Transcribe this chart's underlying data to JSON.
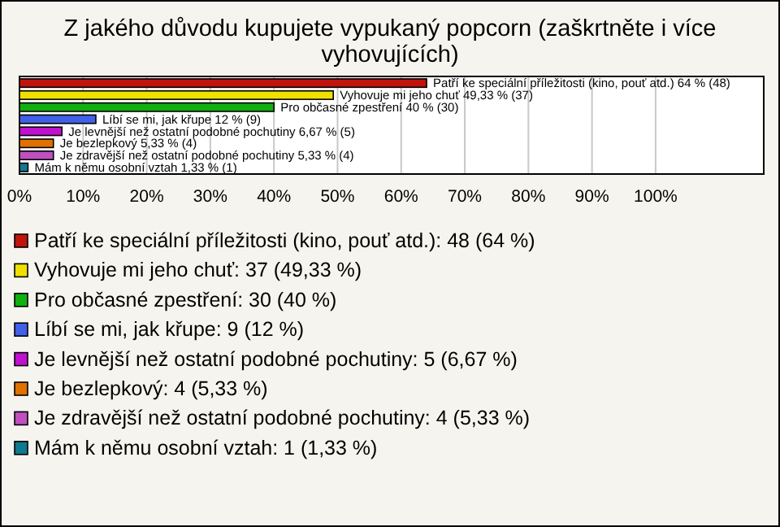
{
  "chart_data": {
    "type": "bar",
    "orientation": "horizontal",
    "title": "Z jakého důvodu kupujete vypukaný popcorn (zaškrtněte i více vyhovujících)",
    "categories": [
      null,
      null,
      null,
      null,
      null,
      null,
      null,
      null
    ],
    "series": [
      {
        "name": "Patří ke speciální příležitosti (kino, pouť atd.): 48 (64 %)",
        "color": "#c0140c",
        "values": [
          64,
          null,
          null,
          null,
          null,
          null,
          null,
          null
        ],
        "value_labels": [
          "Patří ke speciální příležitosti (kino, pouť atd.) 64 % (48)",
          null,
          null,
          null,
          null,
          null,
          null,
          null
        ]
      },
      {
        "name": "Vyhovuje mi jeho chuť: 37 (49,33 %)",
        "color": "#f0e000",
        "values": [
          null,
          49.33,
          null,
          null,
          null,
          null,
          null,
          null
        ],
        "value_labels": [
          null,
          "Vyhovuje mi jeho chuť 49,33 % (37)",
          null,
          null,
          null,
          null,
          null,
          null
        ]
      },
      {
        "name": "Pro občasné zpestření: 30 (40 %)",
        "color": "#10b010",
        "values": [
          null,
          null,
          40,
          null,
          null,
          null,
          null,
          null
        ],
        "value_labels": [
          null,
          null,
          "Pro občasné zpestření 40 % (30)",
          null,
          null,
          null,
          null,
          null
        ]
      },
      {
        "name": "Líbí se mi, jak křupe: 9 (12 %)",
        "color": "#4060e8",
        "values": [
          null,
          null,
          null,
          12,
          null,
          null,
          null,
          null
        ],
        "value_labels": [
          null,
          null,
          null,
          "Líbí se mi, jak křupe 12 % (9)",
          null,
          null,
          null,
          null
        ]
      },
      {
        "name": "Je levnější než ostatní podobné pochutiny: 5 (6,67 %)",
        "color": "#c010d0",
        "values": [
          null,
          null,
          null,
          null,
          6.67,
          null,
          null,
          null
        ],
        "value_labels": [
          null,
          null,
          null,
          null,
          "Je levnější než ostatní podobné pochutiny 6,67 % (5)",
          null,
          null,
          null
        ]
      },
      {
        "name": "Je bezlepkový: 4 (5,33 %)",
        "color": "#e07000",
        "values": [
          null,
          null,
          null,
          null,
          null,
          5.33,
          null,
          null
        ],
        "value_labels": [
          null,
          null,
          null,
          null,
          null,
          "Je bezlepkový 5,33 % (4)",
          null,
          null
        ]
      },
      {
        "name": "Je zdravější než ostatní podobné pochutiny: 4 (5,33 %)",
        "color": "#c050c0",
        "values": [
          null,
          null,
          null,
          null,
          null,
          null,
          5.33,
          null
        ],
        "value_labels": [
          null,
          null,
          null,
          null,
          null,
          null,
          "Je zdravější než ostatní podobné pochutiny 5,33 % (4)",
          null
        ]
      },
      {
        "name": "Mám k němu osobní vztah: 1 (1,33 %)",
        "color": "#107890",
        "values": [
          null,
          null,
          null,
          null,
          null,
          null,
          null,
          1.33
        ],
        "value_labels": [
          null,
          null,
          null,
          null,
          null,
          null,
          null,
          "Mám k němu osobní vztah 1,33 % (1)"
        ]
      }
    ],
    "xlim": [
      0,
      117
    ],
    "xticks": [
      {
        "value": 0,
        "label": "0%"
      },
      {
        "value": 10,
        "label": "10%"
      },
      {
        "value": 20,
        "label": "20%"
      },
      {
        "value": 30,
        "label": "30%"
      },
      {
        "value": 40,
        "label": "40%"
      },
      {
        "value": 50,
        "label": "50%"
      },
      {
        "value": 60,
        "label": "60%"
      },
      {
        "value": 70,
        "label": "70%"
      },
      {
        "value": 80,
        "label": "80%"
      },
      {
        "value": 90,
        "label": "90%"
      },
      {
        "value": 100,
        "label": "100%"
      }
    ],
    "grid": "x",
    "legend": "bottom",
    "tick_labels": "x"
  }
}
